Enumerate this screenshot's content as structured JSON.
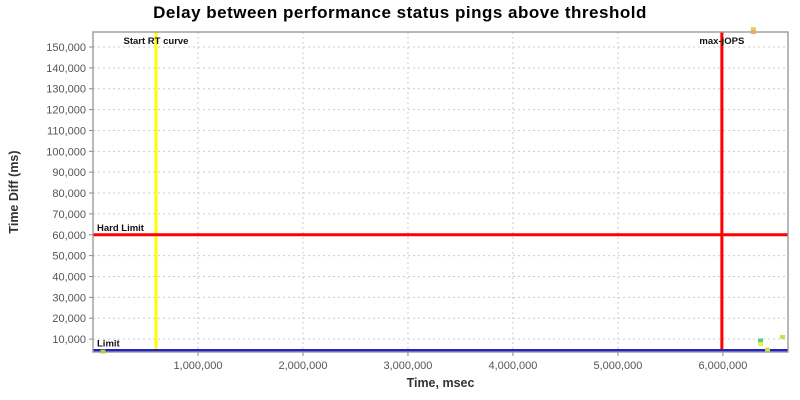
{
  "chart_data": {
    "type": "scatter",
    "title": "Delay between performance status pings above threshold",
    "xlabel": "Time, msec",
    "ylabel": "Time Diff (ms)",
    "xlim": [
      0,
      6620000
    ],
    "ylim": [
      3800,
      157200
    ],
    "x_ticks": [
      1000000,
      2000000,
      3000000,
      4000000,
      5000000,
      6000000
    ],
    "x_tick_labels": [
      "1,000,000",
      "2,000,000",
      "3,000,000",
      "4,000,000",
      "5,000,000",
      "6,000,000"
    ],
    "y_ticks": [
      10000,
      20000,
      30000,
      40000,
      50000,
      60000,
      70000,
      80000,
      90000,
      100000,
      110000,
      120000,
      130000,
      140000,
      150000
    ],
    "y_tick_labels": [
      "10,000",
      "20,000",
      "30,000",
      "40,000",
      "50,000",
      "60,000",
      "70,000",
      "80,000",
      "90,000",
      "100,000",
      "110,000",
      "120,000",
      "130,000",
      "140,000",
      "150,000"
    ],
    "grid": "dashed",
    "grid_color": "#cccccc",
    "border_color": "#999999",
    "tick_color": "#888888",
    "legend": "none",
    "reference_lines": [
      {
        "id": "start-rt-curve",
        "orientation": "vertical",
        "value": 600000,
        "color": "#ffff00",
        "width": 3,
        "label": "Start RT curve",
        "label_placement": "top-center"
      },
      {
        "id": "max-jops",
        "orientation": "vertical",
        "value": 5990000,
        "color": "#ff0000",
        "width": 3,
        "label": "max-jOPS",
        "label_placement": "top-center"
      },
      {
        "id": "hard-limit",
        "orientation": "horizontal",
        "value": 60000,
        "color": "#ff0000",
        "width": 3,
        "label": "Hard Limit",
        "label_placement": "left-above"
      },
      {
        "id": "limit",
        "orientation": "horizontal",
        "value": 4500,
        "color": "#2222cc",
        "width": 3,
        "label": "Limit",
        "label_placement": "left-above"
      }
    ],
    "points": [
      {
        "x": 95000,
        "y": 4000,
        "color": "#b8cc44"
      },
      {
        "x": 6290000,
        "y": 158600,
        "color": "#ccdd55"
      },
      {
        "x": 6290000,
        "y": 157200,
        "color": "#ff9977"
      },
      {
        "x": 6358000,
        "y": 9300,
        "color": "#55cc88"
      },
      {
        "x": 6358000,
        "y": 7600,
        "color": "#eeee44"
      },
      {
        "x": 6425000,
        "y": 5000,
        "color": "#ccdd55"
      },
      {
        "x": 6568000,
        "y": 11000,
        "color": "#ccdd55"
      }
    ]
  }
}
